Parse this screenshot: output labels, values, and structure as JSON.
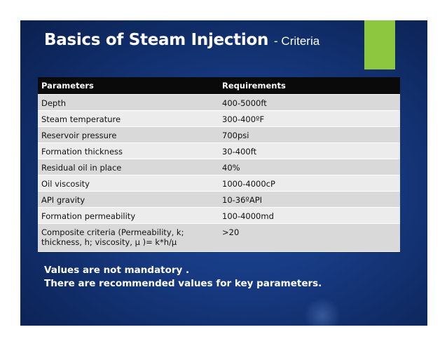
{
  "slide": {
    "title": "Basics of Steam Injection",
    "subtitle": "- Criteria",
    "accent_color": "#8dc63f",
    "background_color": "#173a82"
  },
  "table": {
    "headers": [
      "Parameters",
      "Requirements"
    ],
    "rows": [
      {
        "parameter": "Depth",
        "requirement": "400-5000ft"
      },
      {
        "parameter": "Steam temperature",
        "requirement": "300-400ºF"
      },
      {
        "parameter": "Reservoir pressure",
        "requirement": "700psi"
      },
      {
        "parameter": "Formation thickness",
        "requirement": "30-400ft"
      },
      {
        "parameter": "Residual oil in place",
        "requirement": "40%"
      },
      {
        "parameter": "Oil viscosity",
        "requirement": "1000-4000cP"
      },
      {
        "parameter": "API gravity",
        "requirement": "10-36ºAPI"
      },
      {
        "parameter": "Formation permeability",
        "requirement": "100-4000md"
      },
      {
        "parameter_line1": "Composite criteria (Permeability, k;",
        "parameter_line2": "thickness, h; viscosity, μ )= k*h/μ",
        "requirement": ">20"
      }
    ]
  },
  "notes": {
    "line1": "Values are not mandatory .",
    "line2": "There are recommended values for key parameters."
  }
}
